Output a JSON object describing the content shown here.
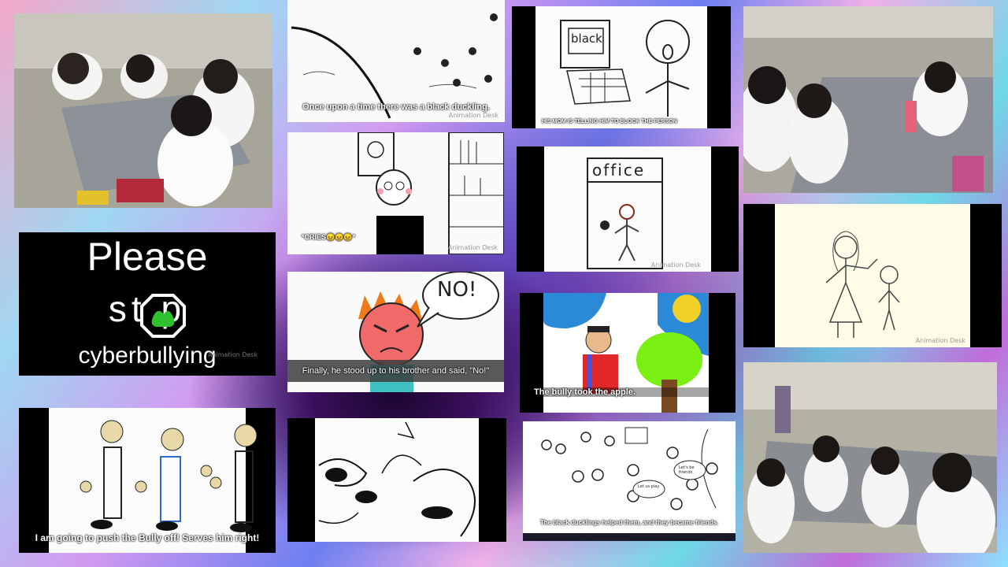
{
  "tiles": {
    "duckling": {
      "caption": "Once upon a time there was a black duckling.",
      "watermark": "Animation Desk"
    },
    "mom": {
      "screen_text": "black",
      "caption": "HIS MOM IS TELLING HIM TO BLOCK THE PERSON"
    },
    "cries": {
      "caption": "*CRIES😖😖😖*",
      "watermark": "Animation Desk"
    },
    "office": {
      "sign": "office",
      "watermark": "Animation Desk"
    },
    "poster": {
      "line1": "Please",
      "line2": "st p",
      "line3": "cyberbullying",
      "watermark": "Animation Desk"
    },
    "no": {
      "speech": "NO!",
      "caption": "Finally, he stood up to his brother and said, \"No!\""
    },
    "apple": {
      "caption": "The bully took the apple."
    },
    "teacher": {
      "watermark": "Animation Desk"
    },
    "push": {
      "caption": "I am going to push the Bully off! Serves him right!"
    },
    "friends": {
      "bubble1": "Let's be friends",
      "bubble2": "Let us play",
      "caption": "The black ducklings helped them, and they became friends."
    }
  }
}
